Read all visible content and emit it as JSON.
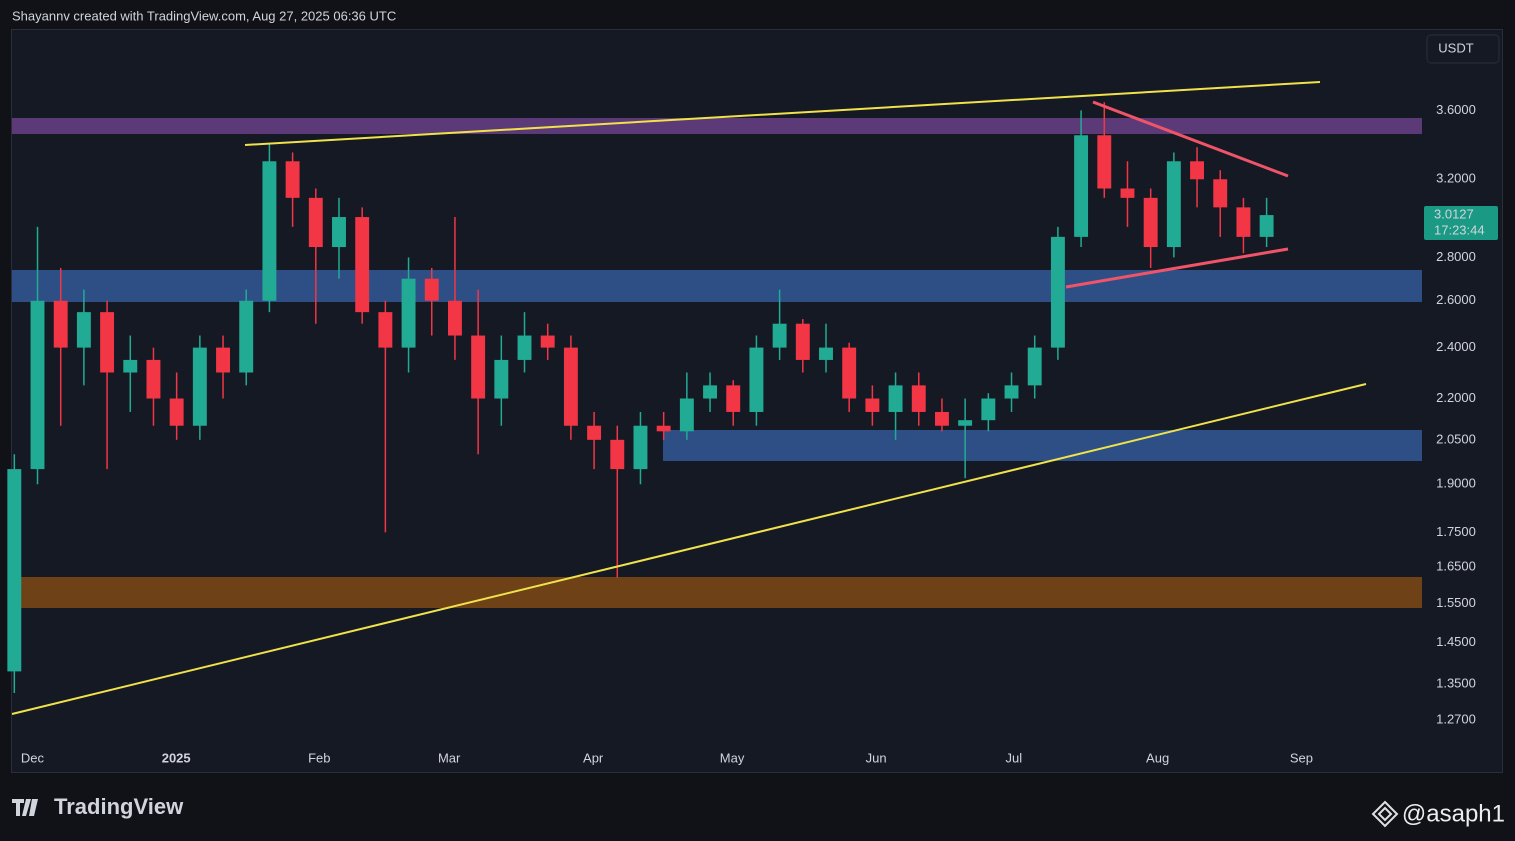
{
  "header": {
    "attribution": "Shayannv created with TradingView.com, Aug 27, 2025 06:36 UTC"
  },
  "chart_data": {
    "type": "candlestick",
    "currency": "USDT",
    "log_scale": true,
    "grid": false,
    "up_color": "#22ab94",
    "down_color": "#f23645",
    "xlim": [
      -0.1,
      60.7
    ],
    "xticks": [
      {
        "value": 0.78,
        "label": "Dec"
      },
      {
        "value": 6.98,
        "label": "2025"
      },
      {
        "value": 13.15,
        "label": "Feb"
      },
      {
        "value": 18.75,
        "label": "Mar"
      },
      {
        "value": 24.96,
        "label": "Apr"
      },
      {
        "value": 30.95,
        "label": "May"
      },
      {
        "value": 37.16,
        "label": "Jun"
      },
      {
        "value": 43.1,
        "label": "Jul"
      },
      {
        "value": 49.3,
        "label": "Aug"
      },
      {
        "value": 55.5,
        "label": "Sep"
      }
    ],
    "ylim": [
      1.162,
      4.13
    ],
    "yticks": [
      {
        "value": 1.27,
        "label": "1.2700"
      },
      {
        "value": 1.35,
        "label": "1.3500"
      },
      {
        "value": 1.45,
        "label": "1.4500"
      },
      {
        "value": 1.55,
        "label": "1.5500"
      },
      {
        "value": 1.65,
        "label": "1.6500"
      },
      {
        "value": 1.75,
        "label": "1.7500"
      },
      {
        "value": 1.9,
        "label": "1.9000"
      },
      {
        "value": 2.05,
        "label": "2.0500"
      },
      {
        "value": 2.2,
        "label": "2.2000"
      },
      {
        "value": 2.4,
        "label": "2.4000"
      },
      {
        "value": 2.6,
        "label": "2.6000"
      },
      {
        "value": 2.8,
        "label": "2.8000"
      },
      {
        "value": 3.2,
        "label": "3.2000"
      },
      {
        "value": 3.6,
        "label": "3.6000"
      }
    ],
    "open": [
      1.38,
      1.95,
      2.6,
      2.4,
      2.55,
      2.3,
      2.35,
      2.2,
      2.1,
      2.4,
      2.3,
      2.6,
      3.3,
      3.1,
      2.85,
      3.0,
      2.55,
      2.4,
      2.7,
      2.6,
      2.45,
      2.2,
      2.35,
      2.45,
      2.4,
      2.1,
      2.05,
      1.95,
      2.1,
      2.08,
      2.2,
      2.25,
      2.15,
      2.4,
      2.5,
      2.35,
      2.4,
      2.2,
      2.15,
      2.25,
      2.15,
      2.1,
      2.12,
      2.2,
      2.25,
      2.4,
      2.9,
      3.45,
      3.15,
      3.1,
      2.85,
      3.3,
      3.2,
      3.05,
      2.9
    ],
    "high": [
      2.0,
      2.95,
      2.75,
      2.65,
      2.6,
      2.45,
      2.4,
      2.3,
      2.45,
      2.45,
      2.65,
      3.4,
      3.35,
      3.15,
      3.1,
      3.05,
      2.6,
      2.8,
      2.75,
      3.0,
      2.65,
      2.45,
      2.55,
      2.5,
      2.45,
      2.15,
      2.1,
      2.15,
      2.15,
      2.3,
      2.3,
      2.27,
      2.45,
      2.65,
      2.52,
      2.5,
      2.42,
      2.25,
      2.3,
      2.3,
      2.2,
      2.2,
      2.22,
      2.3,
      2.45,
      2.95,
      3.6,
      3.65,
      3.3,
      3.15,
      3.35,
      3.38,
      3.25,
      3.1,
      3.1
    ],
    "low": [
      1.33,
      1.9,
      2.1,
      2.25,
      1.95,
      2.15,
      2.1,
      2.05,
      2.05,
      2.2,
      2.25,
      2.55,
      2.95,
      2.5,
      2.7,
      2.5,
      1.75,
      2.3,
      2.45,
      2.35,
      2.0,
      2.1,
      2.3,
      2.35,
      2.05,
      1.95,
      1.62,
      1.9,
      2.05,
      2.05,
      2.15,
      2.1,
      2.1,
      2.35,
      2.3,
      2.3,
      2.15,
      2.1,
      2.05,
      2.1,
      2.08,
      1.92,
      2.08,
      2.15,
      2.2,
      2.35,
      2.85,
      3.1,
      2.95,
      2.75,
      2.8,
      3.05,
      2.9,
      2.82,
      2.85
    ],
    "close": [
      1.95,
      2.6,
      2.4,
      2.55,
      2.3,
      2.35,
      2.2,
      2.1,
      2.4,
      2.3,
      2.6,
      3.3,
      3.1,
      2.85,
      3.0,
      2.55,
      2.4,
      2.7,
      2.6,
      2.45,
      2.2,
      2.35,
      2.45,
      2.4,
      2.1,
      2.05,
      1.95,
      2.1,
      2.08,
      2.2,
      2.25,
      2.15,
      2.4,
      2.5,
      2.35,
      2.4,
      2.2,
      2.15,
      2.25,
      2.15,
      2.1,
      2.12,
      2.2,
      2.25,
      2.4,
      2.9,
      3.45,
      3.15,
      3.1,
      2.85,
      3.3,
      3.2,
      3.05,
      2.9,
      3.01
    ],
    "price_tag": "3.0127",
    "countdown": "17:23:44"
  },
  "footer": {
    "brand": "TradingView",
    "watermark": "@asaph1"
  }
}
